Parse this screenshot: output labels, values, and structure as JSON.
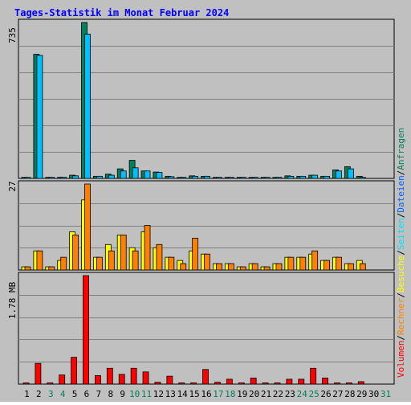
{
  "title": "Tages-Statistik im Monat Februar 2024",
  "colors": {
    "background": "#c0c0c0",
    "title": "#0000ff",
    "hits": "#00805c",
    "files": "#00c0ff",
    "pages": "#00e0ff",
    "visits": "#ffff00",
    "sites": "#ff8000",
    "kbytes": "#ff0000",
    "weekend": "#00805c",
    "weekday": "#000000"
  },
  "legend": {
    "anfragen": "Anfragen",
    "dateien": "Dateien",
    "seiten": "Seiten",
    "besuche": "Besuche",
    "rechner": "Rechner",
    "volumen": "Volumen",
    "sep": "/"
  },
  "panels": {
    "top_max": "735",
    "mid_max": "27",
    "bottom_max": "1.78 MB"
  },
  "chart_data": {
    "type": "bar",
    "categories": [
      "1",
      "2",
      "3",
      "4",
      "5",
      "6",
      "7",
      "8",
      "9",
      "10",
      "11",
      "12",
      "13",
      "14",
      "15",
      "16",
      "17",
      "18",
      "19",
      "20",
      "21",
      "22",
      "23",
      "24",
      "25",
      "26",
      "27",
      "28",
      "29",
      "30",
      "31"
    ],
    "weekend_days": [
      3,
      4,
      10,
      11,
      17,
      18,
      24,
      25,
      31
    ],
    "ylim_top": [
      0,
      735
    ],
    "ylim_mid": [
      0,
      27
    ],
    "ylim_bottom_mb": [
      0,
      1.78
    ],
    "series": [
      {
        "name": "Anfragen",
        "panel": "top",
        "values": [
          5,
          585,
          5,
          5,
          15,
          735,
          10,
          20,
          45,
          85,
          35,
          30,
          10,
          5,
          12,
          10,
          5,
          5,
          5,
          5,
          5,
          5,
          12,
          10,
          15,
          10,
          40,
          55,
          10,
          0,
          0
        ]
      },
      {
        "name": "Dateien",
        "panel": "top",
        "values": [
          5,
          580,
          5,
          5,
          12,
          680,
          10,
          15,
          35,
          50,
          35,
          28,
          8,
          5,
          10,
          10,
          5,
          5,
          5,
          5,
          5,
          5,
          10,
          10,
          15,
          10,
          35,
          45,
          5,
          0,
          0
        ]
      },
      {
        "name": "Besuche",
        "panel": "mid",
        "values": [
          1,
          6,
          1,
          3,
          12,
          22,
          4,
          8,
          11,
          7,
          12,
          7,
          4,
          3,
          6,
          5,
          2,
          2,
          1,
          2,
          1,
          2,
          4,
          4,
          5,
          3,
          4,
          2,
          3,
          0,
          0
        ]
      },
      {
        "name": "Rechner",
        "panel": "mid",
        "values": [
          1,
          6,
          1,
          4,
          11,
          27,
          4,
          6,
          11,
          6,
          14,
          8,
          4,
          2,
          10,
          5,
          2,
          2,
          1,
          2,
          1,
          2,
          4,
          4,
          6,
          3,
          4,
          2,
          2,
          0,
          0
        ]
      },
      {
        "name": "Volumen",
        "panel": "bottom",
        "values": [
          0.02,
          0.34,
          0.02,
          0.15,
          0.44,
          1.78,
          0.14,
          0.26,
          0.16,
          0.26,
          0.2,
          0.03,
          0.13,
          0.02,
          0.02,
          0.24,
          0.03,
          0.08,
          0.02,
          0.1,
          0.02,
          0.02,
          0.08,
          0.08,
          0.26,
          0.1,
          0.02,
          0.02,
          0.04,
          0,
          0
        ]
      }
    ]
  }
}
